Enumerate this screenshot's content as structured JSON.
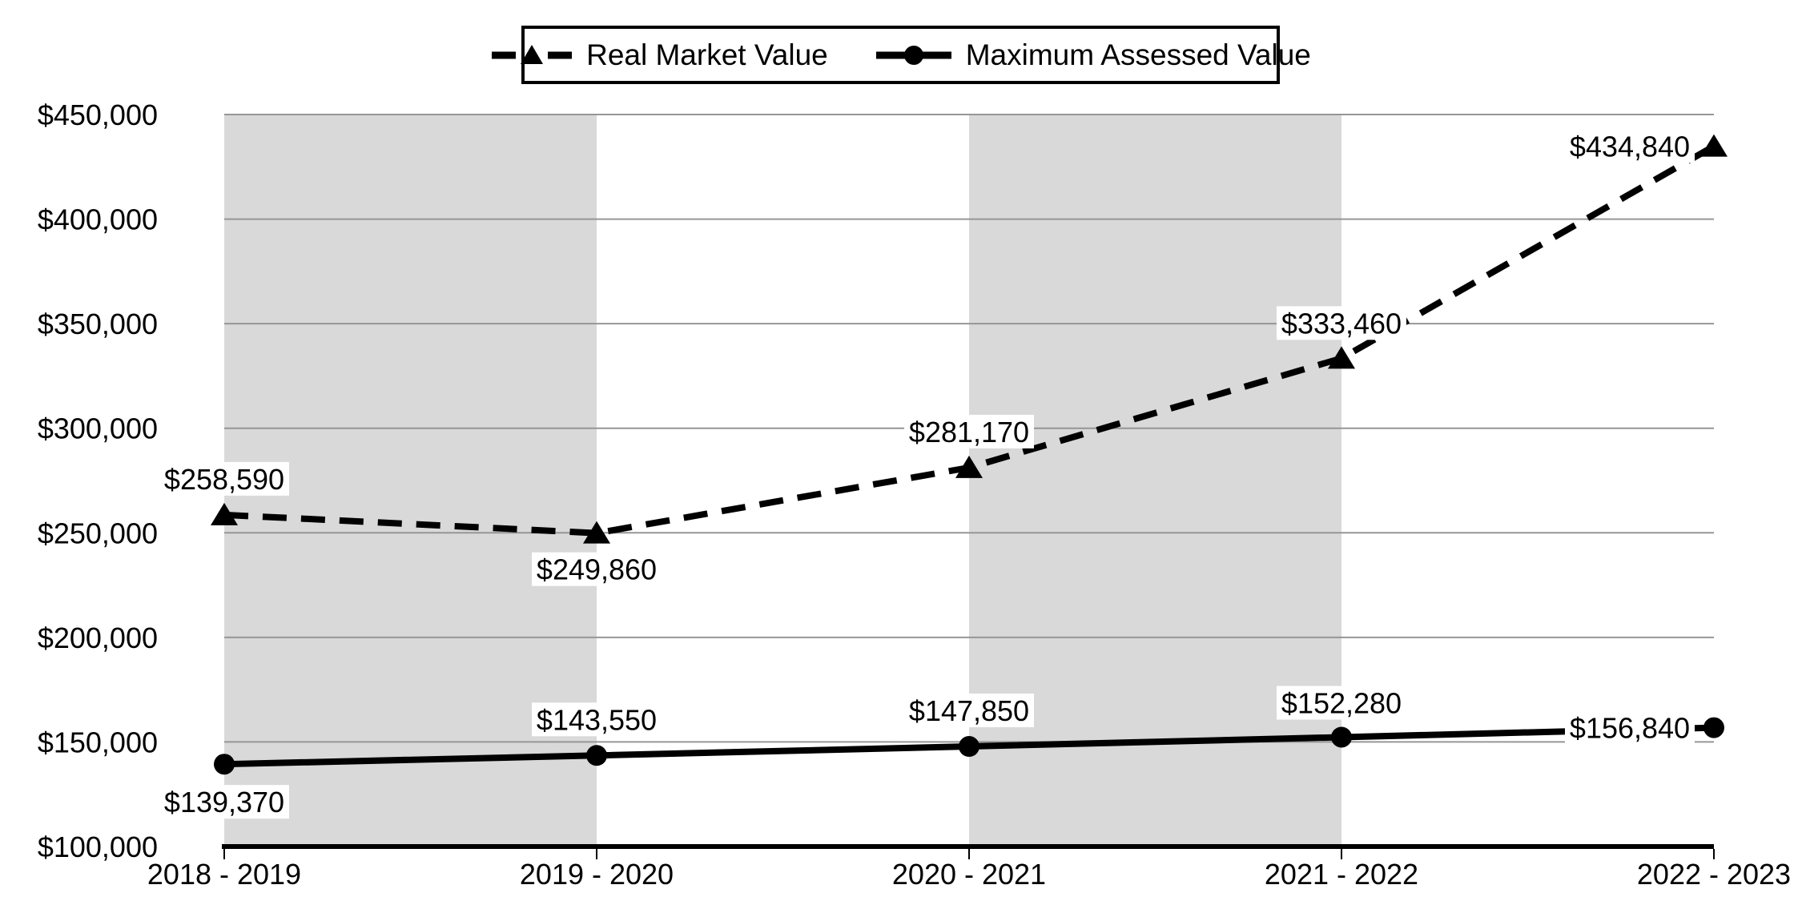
{
  "legend": {
    "position": "top-center",
    "items": [
      {
        "label": "Real Market Value",
        "marker": "triangle-dashed-line"
      },
      {
        "label": "Maximum Assessed Value",
        "marker": "circle-solid-line"
      }
    ]
  },
  "chart_data": {
    "type": "line",
    "categories": [
      "2018 - 2019",
      "2019 - 2020",
      "2020 - 2021",
      "2021 - 2022",
      "2022 - 2023"
    ],
    "series": [
      {
        "name": "Real Market Value",
        "line_style": "dashed",
        "marker": "triangle",
        "values": [
          258590,
          249860,
          281170,
          333460,
          434840
        ],
        "labels": [
          "$258,590",
          "$249,860",
          "$281,170",
          "$333,460",
          "$434,840"
        ]
      },
      {
        "name": "Maximum Assessed Value",
        "line_style": "solid",
        "marker": "circle",
        "values": [
          139370,
          143550,
          147850,
          152280,
          156840
        ],
        "labels": [
          "$139,370",
          "$143,550",
          "$147,850",
          "$152,280",
          "$156,840"
        ]
      }
    ],
    "ylim": [
      100000,
      450000
    ],
    "y_tick_step": 50000,
    "y_tick_labels": [
      "$100,000",
      "$150,000",
      "$200,000",
      "$250,000",
      "$300,000",
      "$350,000",
      "$400,000",
      "$450,000"
    ],
    "grid": true,
    "gray_band_intervals": [
      0,
      2
    ],
    "legend_position": "top-center",
    "colors": {
      "line": "#000000",
      "text": "#000000",
      "band": "#d9d9d9",
      "gridline": "#969696",
      "label_background": "#ffffff",
      "axis": "#000000"
    }
  }
}
